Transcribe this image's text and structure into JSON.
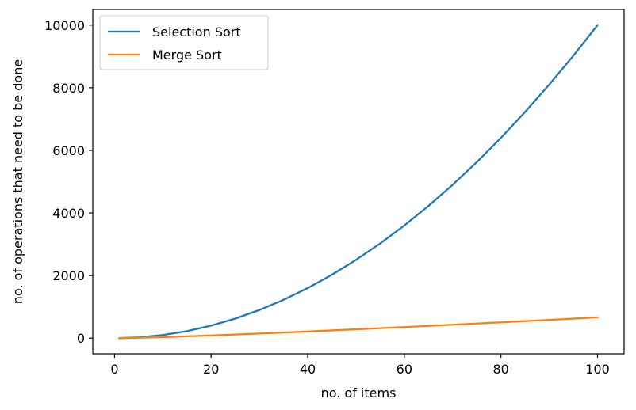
{
  "chart_data": {
    "type": "line",
    "title": "",
    "xlabel": "no. of items",
    "ylabel": "no. of operations that need to be done",
    "xlim": [
      -4.5,
      105.5
    ],
    "ylim": [
      -500,
      10500
    ],
    "x_ticks": [
      0,
      20,
      40,
      60,
      80,
      100
    ],
    "y_ticks": [
      0,
      2000,
      4000,
      6000,
      8000,
      10000
    ],
    "grid": false,
    "legend_position": "top-left",
    "series": [
      {
        "name": "Selection Sort",
        "color": "#1f77b4",
        "x": [
          1,
          5,
          10,
          15,
          20,
          25,
          30,
          35,
          40,
          45,
          50,
          55,
          60,
          65,
          70,
          75,
          80,
          85,
          90,
          95,
          100
        ],
        "values": [
          1,
          25,
          100,
          225,
          400,
          625,
          900,
          1225,
          1600,
          2025,
          2500,
          3025,
          3600,
          4225,
          4900,
          5625,
          6400,
          7225,
          8100,
          9025,
          10000
        ]
      },
      {
        "name": "Merge Sort",
        "color": "#ff7f0e",
        "x": [
          1,
          5,
          10,
          15,
          20,
          25,
          30,
          35,
          40,
          45,
          50,
          55,
          60,
          65,
          70,
          75,
          80,
          85,
          90,
          95,
          100
        ],
        "values": [
          0,
          12,
          33,
          59,
          86,
          116,
          147,
          180,
          213,
          247,
          282,
          318,
          354,
          391,
          429,
          467,
          506,
          545,
          584,
          624,
          664
        ]
      }
    ]
  }
}
